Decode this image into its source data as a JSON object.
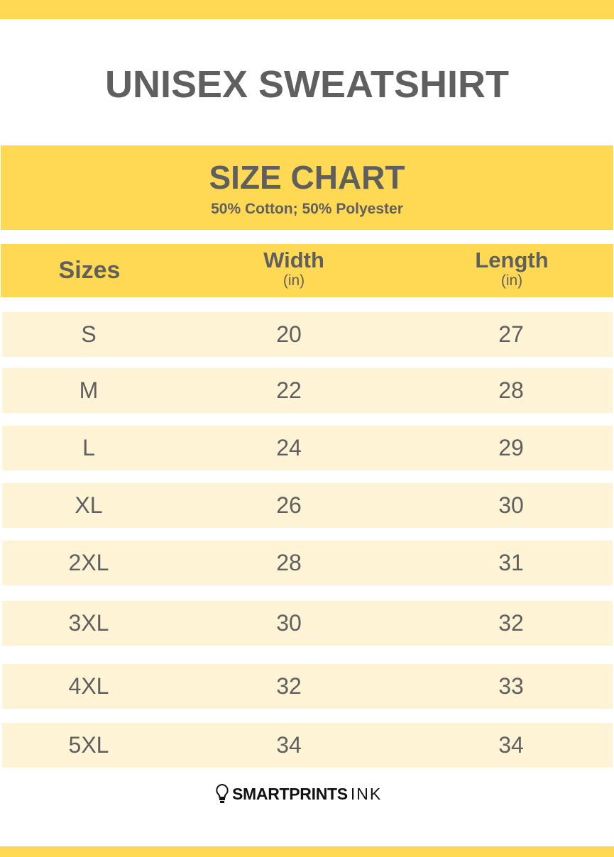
{
  "title": "UNISEX SWEATSHIRT",
  "size_chart": {
    "heading": "SIZE CHART",
    "material": "50% Cotton; 50% Polyester"
  },
  "columns": [
    {
      "label": "Sizes",
      "unit": ""
    },
    {
      "label": "Width",
      "unit": "(in)"
    },
    {
      "label": "Length",
      "unit": "(in)"
    }
  ],
  "rows": [
    {
      "size": "S",
      "width": "20",
      "length": "27"
    },
    {
      "size": "M",
      "width": "22",
      "length": "28"
    },
    {
      "size": "L",
      "width": "24",
      "length": "29"
    },
    {
      "size": "XL",
      "width": "26",
      "length": "30"
    },
    {
      "size": "2XL",
      "width": "28",
      "length": "31"
    },
    {
      "size": "3XL",
      "width": "30",
      "length": "32"
    },
    {
      "size": "4XL",
      "width": "32",
      "length": "33"
    },
    {
      "size": "5XL",
      "width": "34",
      "length": "34"
    }
  ],
  "logo": {
    "bold": "SMARTPRINTS",
    "light": "INK",
    "icon": "lightbulb-icon"
  },
  "colors": {
    "accent": "#ffd954",
    "row": "#fff3d6",
    "text": "#5f5f5f"
  }
}
